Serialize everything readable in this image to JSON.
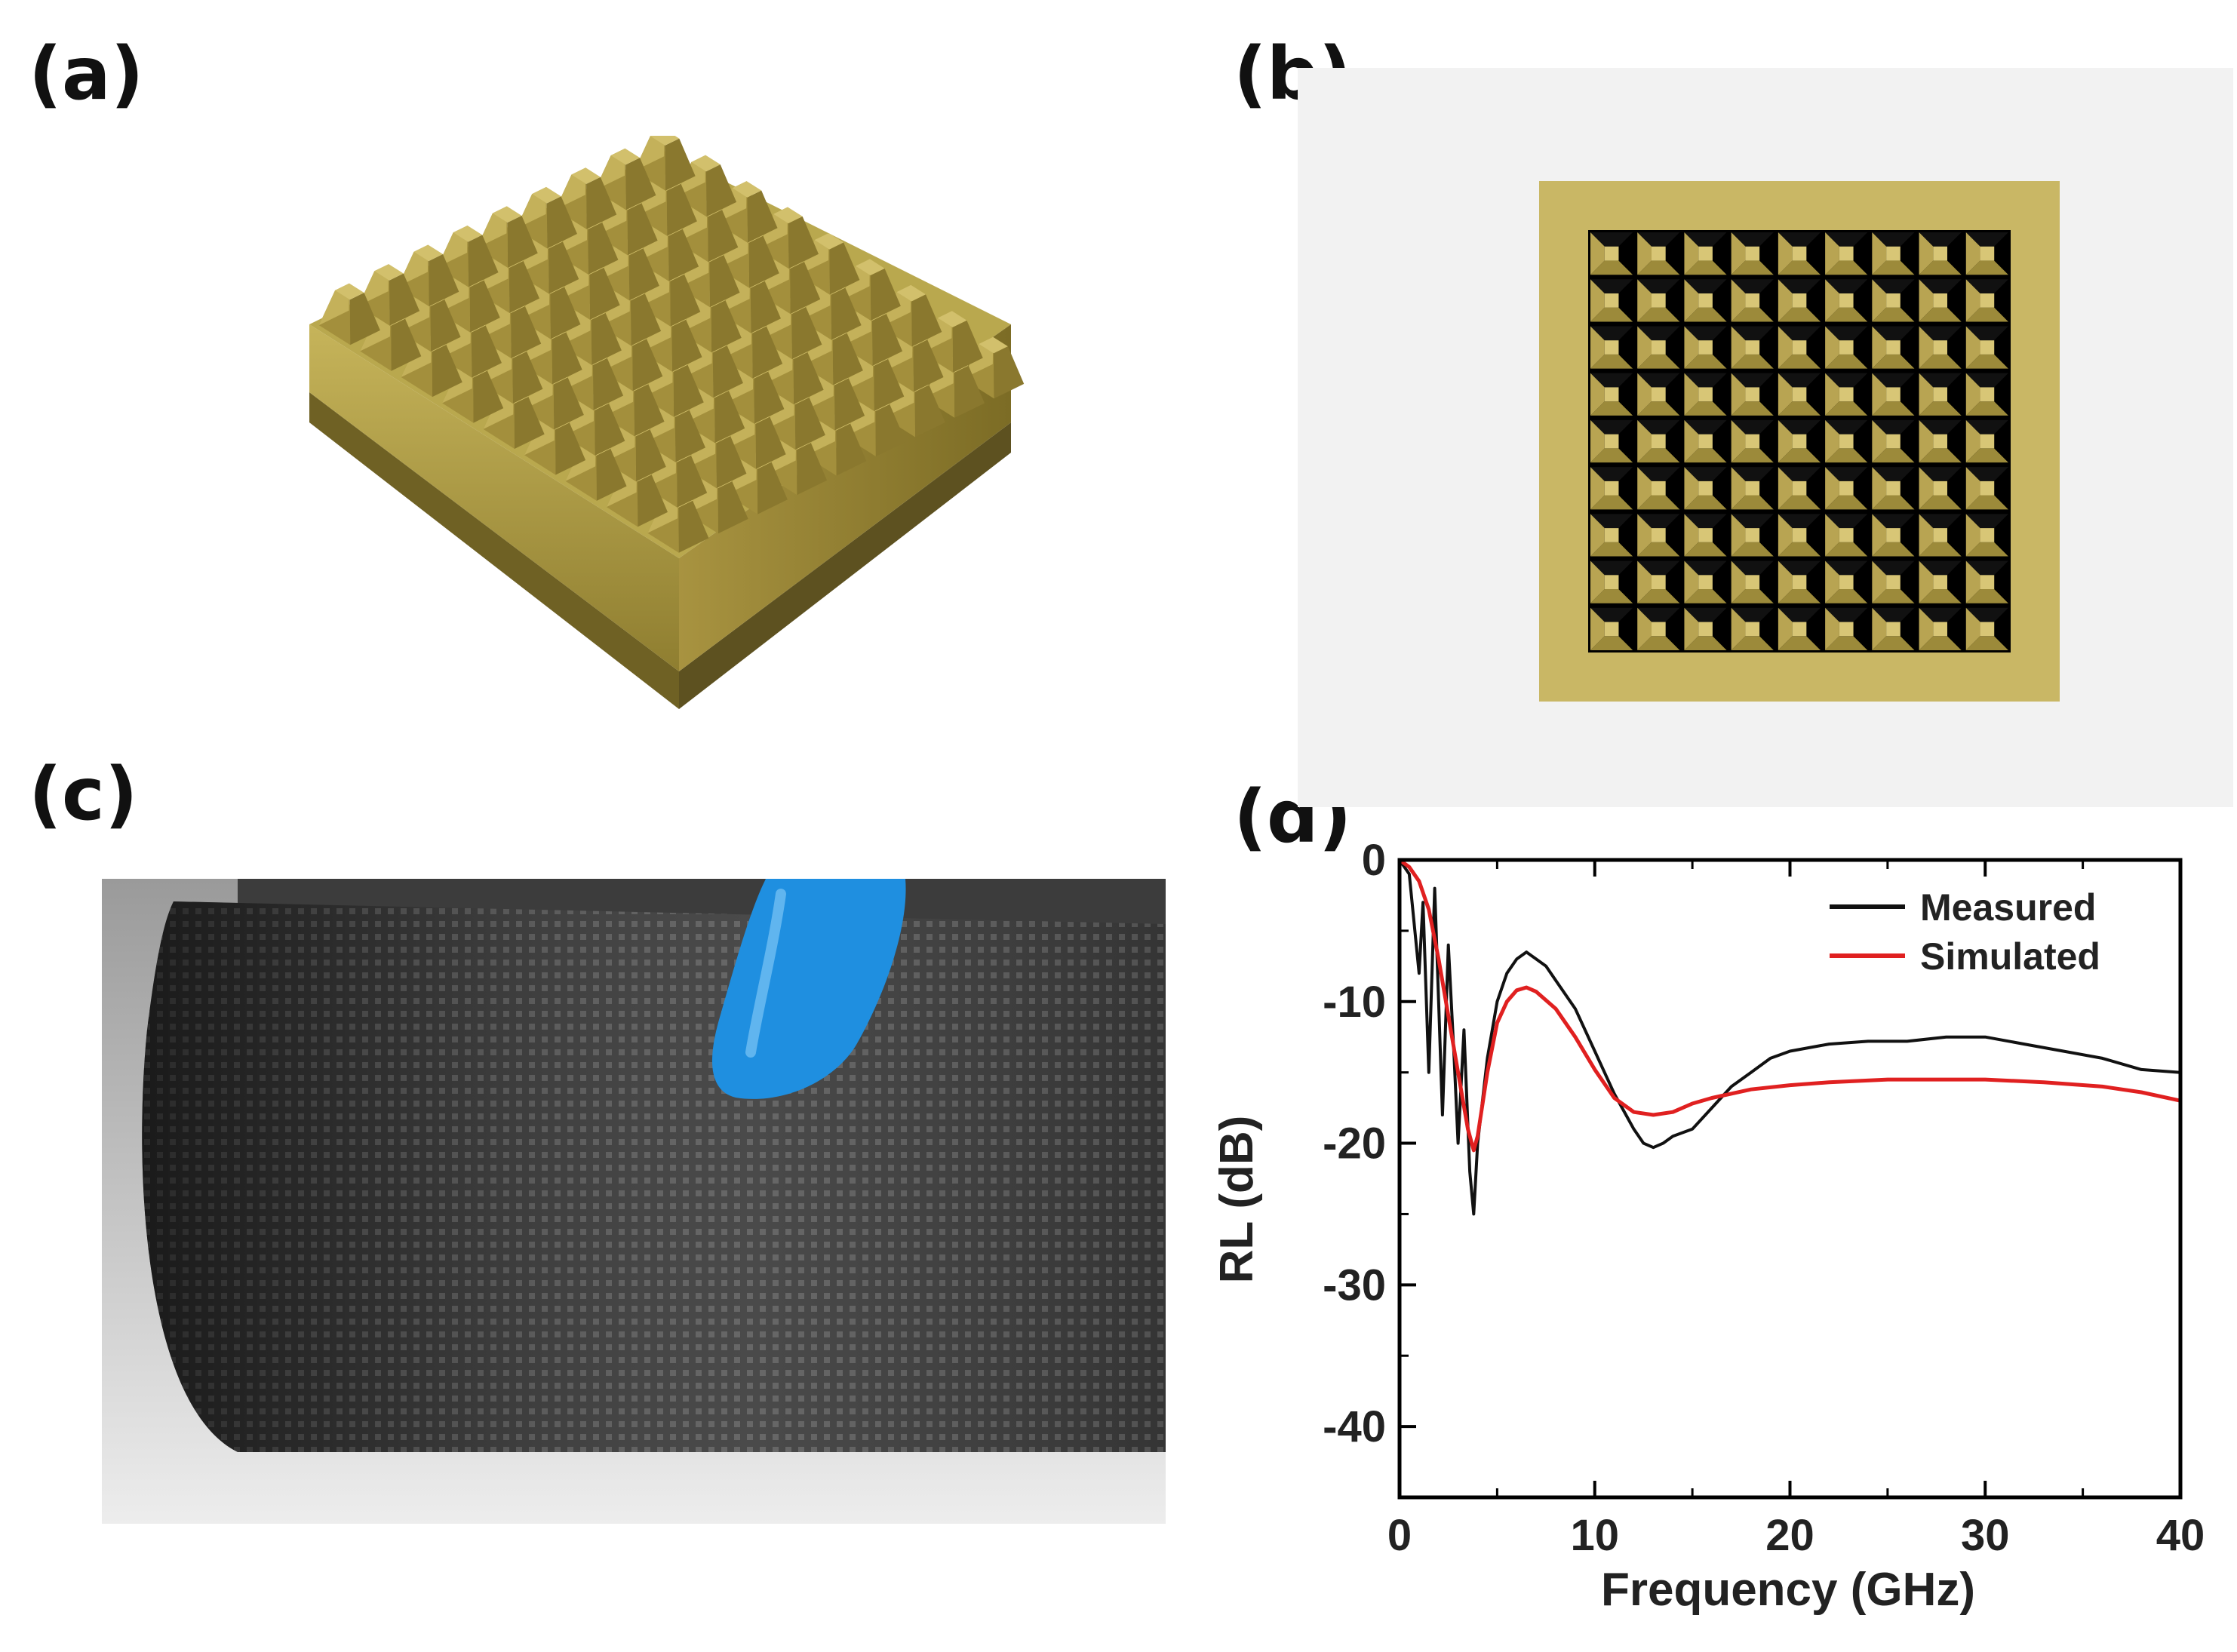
{
  "figure": {
    "panels": [
      {
        "label": "(a)"
      },
      {
        "label": "(b)"
      },
      {
        "label": "(c)"
      },
      {
        "label": "(d)"
      }
    ]
  },
  "chart_data": {
    "type": "line",
    "xlabel": "Frequency (GHz)",
    "ylabel": "RL (dB)",
    "xlim": [
      0,
      40
    ],
    "ylim": [
      -45,
      0
    ],
    "xticks": [
      0,
      10,
      20,
      30,
      40
    ],
    "yticks": [
      0,
      -10,
      -20,
      -30,
      -40
    ],
    "legend_position": "top-right",
    "series": [
      {
        "name": "Measured",
        "color": "#111111",
        "x": [
          0,
          0.5,
          1.0,
          1.2,
          1.5,
          1.8,
          2.0,
          2.2,
          2.5,
          2.8,
          3.0,
          3.3,
          3.6,
          3.8,
          4.0,
          4.5,
          5.0,
          5.5,
          6.0,
          6.5,
          7.0,
          7.5,
          8.0,
          9.0,
          10.0,
          11.0,
          12.0,
          12.5,
          13.0,
          13.5,
          14.0,
          15.0,
          16.0,
          17.0,
          18.0,
          19.0,
          20.0,
          22.0,
          24.0,
          26.0,
          28.0,
          30.0,
          32.0,
          34.0,
          36.0,
          38.0,
          40.0
        ],
        "y": [
          0,
          -1,
          -8,
          -3,
          -15,
          -2,
          -10,
          -18,
          -6,
          -14,
          -20,
          -12,
          -22,
          -25,
          -20,
          -14,
          -10,
          -8,
          -7,
          -6.5,
          -7,
          -7.5,
          -8.5,
          -10.5,
          -13.5,
          -16.5,
          -19,
          -20,
          -20.3,
          -20,
          -19.5,
          -19,
          -17.5,
          -16,
          -15,
          -14,
          -13.5,
          -13,
          -12.8,
          -12.8,
          -12.5,
          -12.5,
          -13,
          -13.5,
          -14,
          -14.8,
          -15
        ]
      },
      {
        "name": "Simulated",
        "color": "#e02020",
        "x": [
          0,
          0.5,
          1.0,
          1.5,
          2.0,
          2.5,
          3.0,
          3.5,
          3.8,
          4.0,
          4.5,
          5.0,
          5.5,
          6.0,
          6.5,
          7.0,
          8.0,
          9.0,
          10.0,
          11.0,
          12.0,
          13.0,
          14.0,
          15.0,
          16.0,
          18.0,
          20.0,
          22.0,
          25.0,
          28.0,
          30.0,
          33.0,
          36.0,
          38.0,
          40.0
        ],
        "y": [
          0,
          -0.5,
          -1.5,
          -3.5,
          -7,
          -11,
          -15,
          -19,
          -20.5,
          -19.5,
          -15,
          -11.5,
          -10,
          -9.2,
          -9,
          -9.3,
          -10.5,
          -12.5,
          -14.8,
          -16.8,
          -17.8,
          -18,
          -17.8,
          -17.2,
          -16.8,
          -16.2,
          -15.9,
          -15.7,
          -15.5,
          -15.5,
          -15.5,
          -15.7,
          -16,
          -16.4,
          -17
        ]
      }
    ]
  }
}
